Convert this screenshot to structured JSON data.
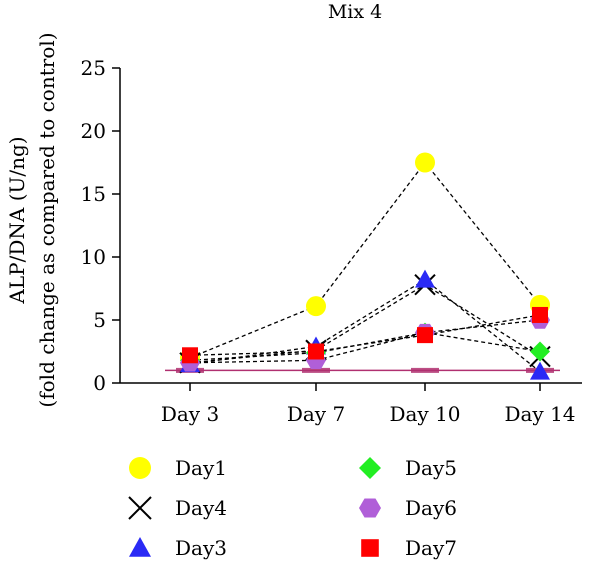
{
  "chart_data": {
    "type": "line",
    "title": "Mix 4",
    "ylabel_line1": "ALP/DNA (U/ng)",
    "ylabel_line2": "(fold change as compared to control)",
    "xlabel": "",
    "categories": [
      "Day 3",
      "Day 7",
      "Day 10",
      "Day 14"
    ],
    "ylim": [
      0,
      25
    ],
    "yticks": [
      "0",
      "5",
      "10",
      "15",
      "20",
      "25"
    ],
    "grid": false,
    "legend_position": "bottom",
    "baseline": {
      "value": 1,
      "color": "#b03070"
    },
    "series": [
      {
        "name": "Day1",
        "marker": "circle",
        "color": "#ffff00",
        "values": [
          2.0,
          6.1,
          17.5,
          6.2
        ]
      },
      {
        "name": "Day4",
        "marker": "x",
        "color": "#000000",
        "values": [
          1.6,
          2.6,
          7.8,
          2.1
        ]
      },
      {
        "name": "Day3",
        "marker": "triangle",
        "color": "#2a2af5",
        "values": [
          1.5,
          2.9,
          8.2,
          0.9
        ]
      },
      {
        "name": "Day5",
        "marker": "diamond",
        "color": "#22ee22",
        "values": [
          1.8,
          2.4,
          4.0,
          2.5
        ]
      },
      {
        "name": "Day6",
        "marker": "hexagon",
        "color": "#b05fd8",
        "values": [
          1.6,
          1.8,
          4.0,
          5.0
        ]
      },
      {
        "name": "Day7",
        "marker": "square",
        "color": "#ff0000",
        "values": [
          2.2,
          2.5,
          3.8,
          5.4
        ]
      }
    ]
  }
}
